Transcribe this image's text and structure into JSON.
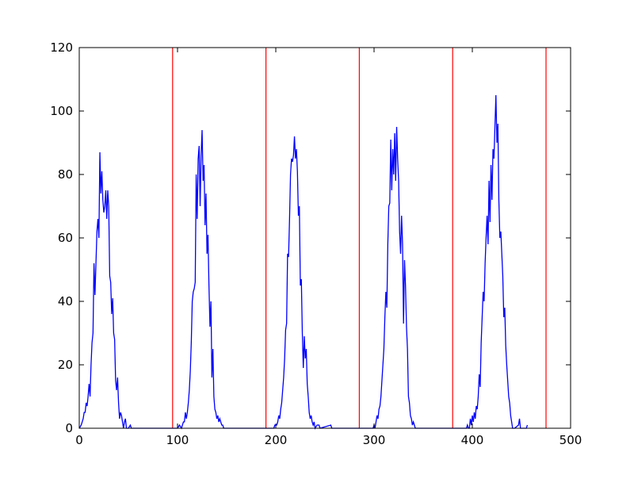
{
  "chart_data": {
    "type": "line",
    "x": [
      0,
      2,
      4,
      5,
      6,
      7,
      8,
      9,
      10,
      11,
      12,
      13,
      14,
      15,
      16,
      17,
      18,
      19,
      20,
      21,
      22,
      23,
      24,
      25,
      26,
      27,
      28,
      29,
      30,
      31,
      32,
      33,
      34,
      35,
      36,
      37,
      38,
      39,
      40,
      41,
      42,
      43,
      44,
      45,
      46,
      47,
      48,
      50,
      52,
      53,
      100,
      102,
      104,
      106,
      107,
      108,
      109,
      110,
      111,
      112,
      113,
      114,
      115,
      116,
      117,
      118,
      119,
      120,
      121,
      122,
      123,
      124,
      125,
      126,
      127,
      128,
      129,
      130,
      131,
      132,
      133,
      134,
      135,
      136,
      137,
      138,
      139,
      140,
      141,
      142,
      143,
      144,
      145,
      146,
      147,
      198,
      199,
      200,
      201,
      202,
      203,
      204,
      205,
      206,
      207,
      208,
      209,
      210,
      211,
      212,
      213,
      214,
      215,
      216,
      217,
      218,
      219,
      220,
      221,
      222,
      223,
      224,
      225,
      226,
      227,
      228,
      229,
      230,
      231,
      232,
      233,
      234,
      235,
      236,
      237,
      238,
      239,
      240,
      242,
      244,
      245,
      256,
      257,
      298,
      299,
      300,
      301,
      302,
      303,
      304,
      305,
      306,
      307,
      308,
      309,
      310,
      311,
      312,
      313,
      314,
      315,
      316,
      317,
      318,
      319,
      320,
      321,
      322,
      323,
      324,
      325,
      326,
      327,
      328,
      329,
      330,
      331,
      332,
      333,
      334,
      335,
      336,
      337,
      338,
      339,
      340,
      341,
      342,
      394,
      395,
      396,
      397,
      398,
      399,
      400,
      401,
      402,
      403,
      404,
      405,
      406,
      407,
      408,
      409,
      410,
      411,
      412,
      413,
      414,
      415,
      416,
      417,
      418,
      419,
      420,
      421,
      422,
      423,
      424,
      425,
      426,
      427,
      428,
      429,
      430,
      431,
      432,
      433,
      434,
      435,
      436,
      437,
      438,
      439,
      440,
      441,
      442,
      443,
      447,
      448,
      449,
      455,
      456
    ],
    "series": [
      {
        "color": "#0000ff",
        "values": [
          0,
          1,
          3,
          5,
          5,
          8,
          7,
          10,
          14,
          10,
          20,
          27,
          30,
          52,
          42,
          52,
          62,
          66,
          60,
          87,
          74,
          81,
          72,
          68,
          70,
          75,
          66,
          75,
          70,
          48,
          46,
          36,
          41,
          30,
          28,
          15,
          12,
          16,
          8,
          3,
          5,
          4,
          2,
          0,
          2,
          3,
          0,
          0,
          1,
          0,
          0,
          1,
          0,
          2,
          2,
          5,
          3,
          5,
          8,
          12,
          18,
          27,
          40,
          43,
          44,
          46,
          80,
          66,
          85,
          89,
          70,
          86,
          94,
          78,
          83,
          64,
          74,
          55,
          61,
          45,
          32,
          40,
          16,
          25,
          10,
          6,
          5,
          3,
          4,
          2,
          3,
          2,
          1,
          1,
          0,
          0,
          1,
          1,
          1,
          2,
          4,
          3,
          6,
          8,
          12,
          16,
          22,
          31,
          33,
          55,
          54,
          66,
          80,
          85,
          84,
          86,
          92,
          85,
          88,
          81,
          67,
          70,
          45,
          47,
          30,
          19,
          29,
          22,
          25,
          14,
          10,
          5,
          3,
          4,
          2,
          1,
          2,
          0,
          1,
          1,
          0,
          1,
          0,
          0,
          0,
          1,
          0,
          2,
          4,
          3,
          6,
          7,
          10,
          15,
          20,
          25,
          35,
          43,
          38,
          58,
          70,
          71,
          91,
          75,
          88,
          80,
          93,
          78,
          95,
          85,
          78,
          62,
          55,
          67,
          58,
          33,
          53,
          45,
          32,
          25,
          10,
          8,
          4,
          3,
          1,
          2,
          1,
          0,
          0,
          1,
          0,
          0,
          3,
          1,
          4,
          2,
          5,
          3,
          7,
          6,
          10,
          17,
          13,
          27,
          35,
          43,
          40,
          52,
          60,
          67,
          58,
          78,
          65,
          83,
          72,
          88,
          85,
          95,
          105,
          90,
          96,
          72,
          60,
          62,
          55,
          48,
          35,
          38,
          26,
          20,
          15,
          10,
          8,
          4,
          2,
          0,
          0,
          0,
          1,
          3,
          0,
          0,
          1
        ]
      }
    ],
    "vlines": {
      "color": "#ff0000",
      "x": [
        95,
        190,
        285,
        380,
        475
      ]
    },
    "xlim": [
      0,
      500
    ],
    "xticks": [
      0,
      100,
      200,
      300,
      400,
      500
    ],
    "ylim": [
      0,
      120
    ],
    "yticks": [
      0,
      20,
      40,
      60,
      80,
      100,
      120
    ]
  }
}
